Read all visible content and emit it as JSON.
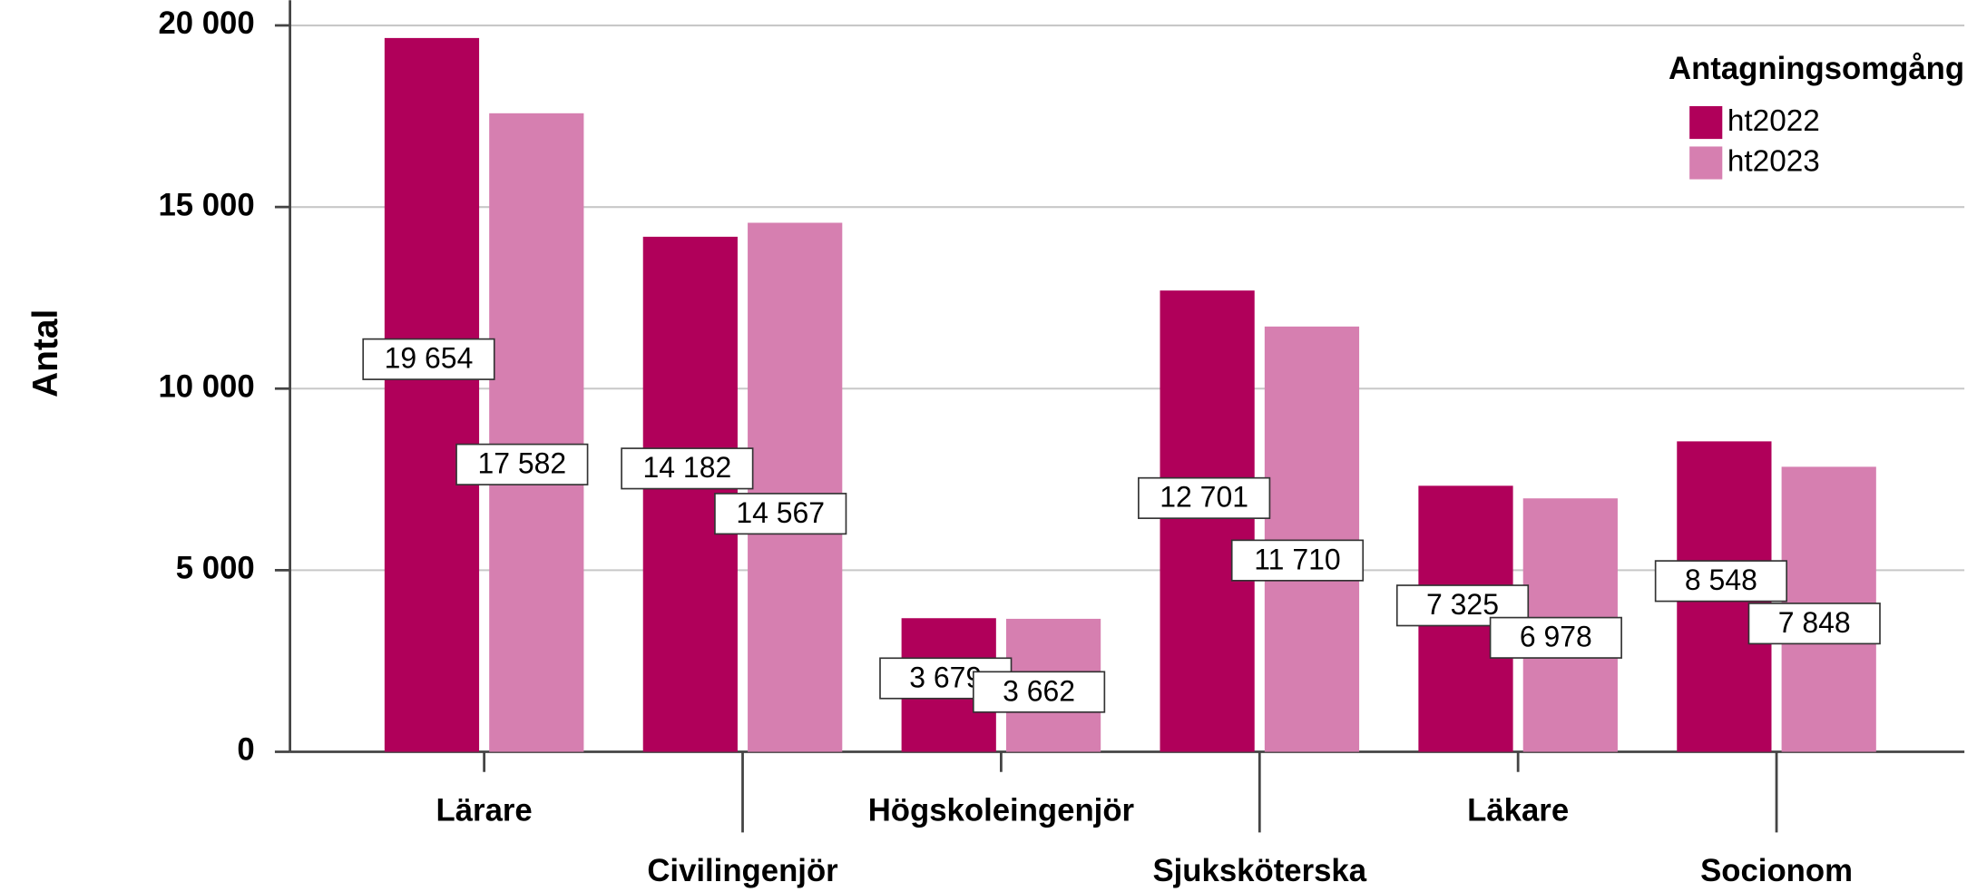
{
  "chart_data": {
    "type": "bar",
    "categories": [
      "Lärare",
      "Civilingenjör",
      "Högskoleingenjör",
      "Sjuksköterska",
      "Läkare",
      "Socionom"
    ],
    "series": [
      {
        "name": "ht2022",
        "color": "#b0005a",
        "values": [
          19654,
          14182,
          3679,
          12701,
          7325,
          8548
        ],
        "value_labels": [
          "19 654",
          "14 182",
          "3 679",
          "12 701",
          "7 325",
          "8 548"
        ]
      },
      {
        "name": "ht2023",
        "color": "#d67fb0",
        "values": [
          17582,
          14567,
          3662,
          11710,
          6978,
          7848
        ],
        "value_labels": [
          "17 582",
          "14 567",
          "3 662",
          "11 710",
          "6 978",
          "7 848"
        ]
      }
    ],
    "ylabel": "Antal",
    "legend_title": "Antagningsomgång",
    "legend": "upper right",
    "grid": true,
    "ylim": [
      0,
      20000
    ],
    "yticks": [
      0,
      {
        "value": 5000,
        "label": "5 000"
      },
      {
        "value": 10000,
        "label": "10 000"
      },
      {
        "value": 15000,
        "label": "15 000"
      },
      {
        "value": 20000,
        "label": "20 000"
      }
    ]
  }
}
